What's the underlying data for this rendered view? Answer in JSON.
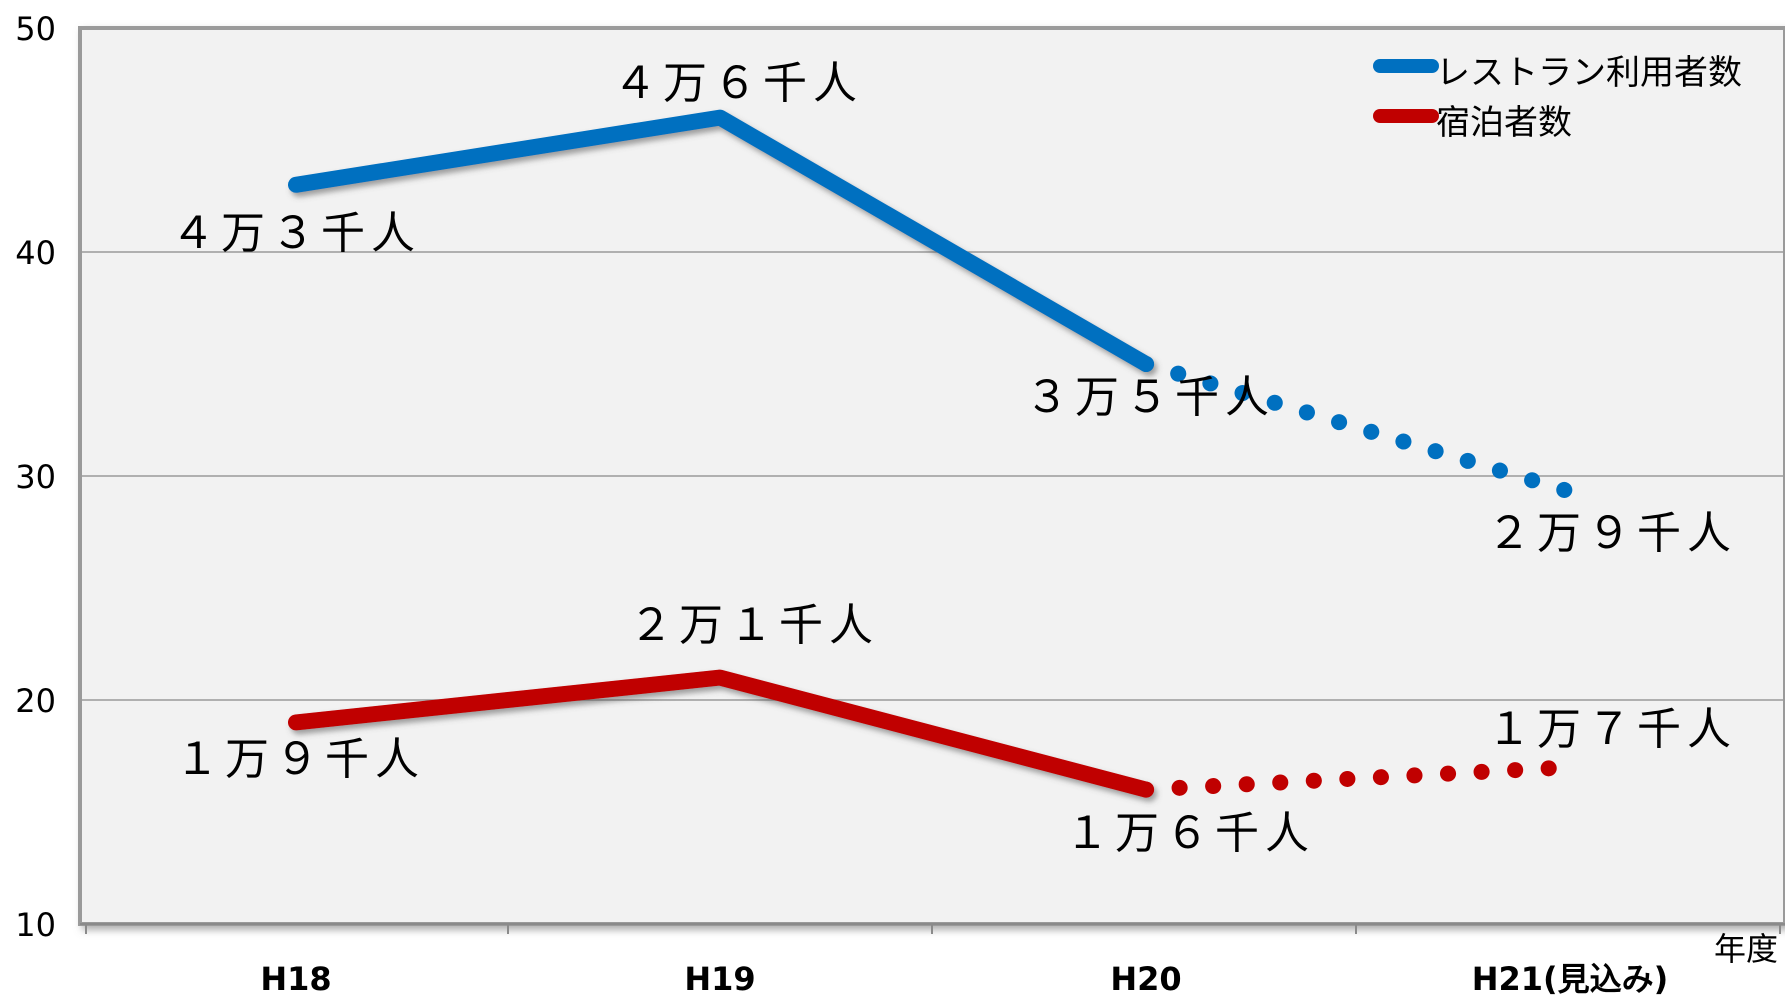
{
  "chart_data": {
    "type": "line",
    "categories": [
      "H18",
      "H19",
      "H20",
      "H21(見込み)"
    ],
    "xlabel": "年度",
    "ylim": [
      10,
      50
    ],
    "yticks": [
      10,
      20,
      30,
      40,
      50
    ],
    "grid": true,
    "legend_position": "top-right",
    "series": [
      {
        "name": "レストラン利用者数",
        "color": "#0070C0",
        "values": [
          43,
          46,
          35,
          29.3
        ],
        "labels": [
          "４万３千人",
          "４万６千人",
          "３万５千人",
          "２万９千人"
        ],
        "projected_from_index": 2
      },
      {
        "name": "宿泊者数",
        "color": "#C00000",
        "values": [
          19,
          21,
          16,
          17
        ],
        "labels": [
          "１万９千人",
          "２万１千人",
          "１万６千人",
          "１万７千人"
        ],
        "projected_from_index": 2
      }
    ]
  }
}
